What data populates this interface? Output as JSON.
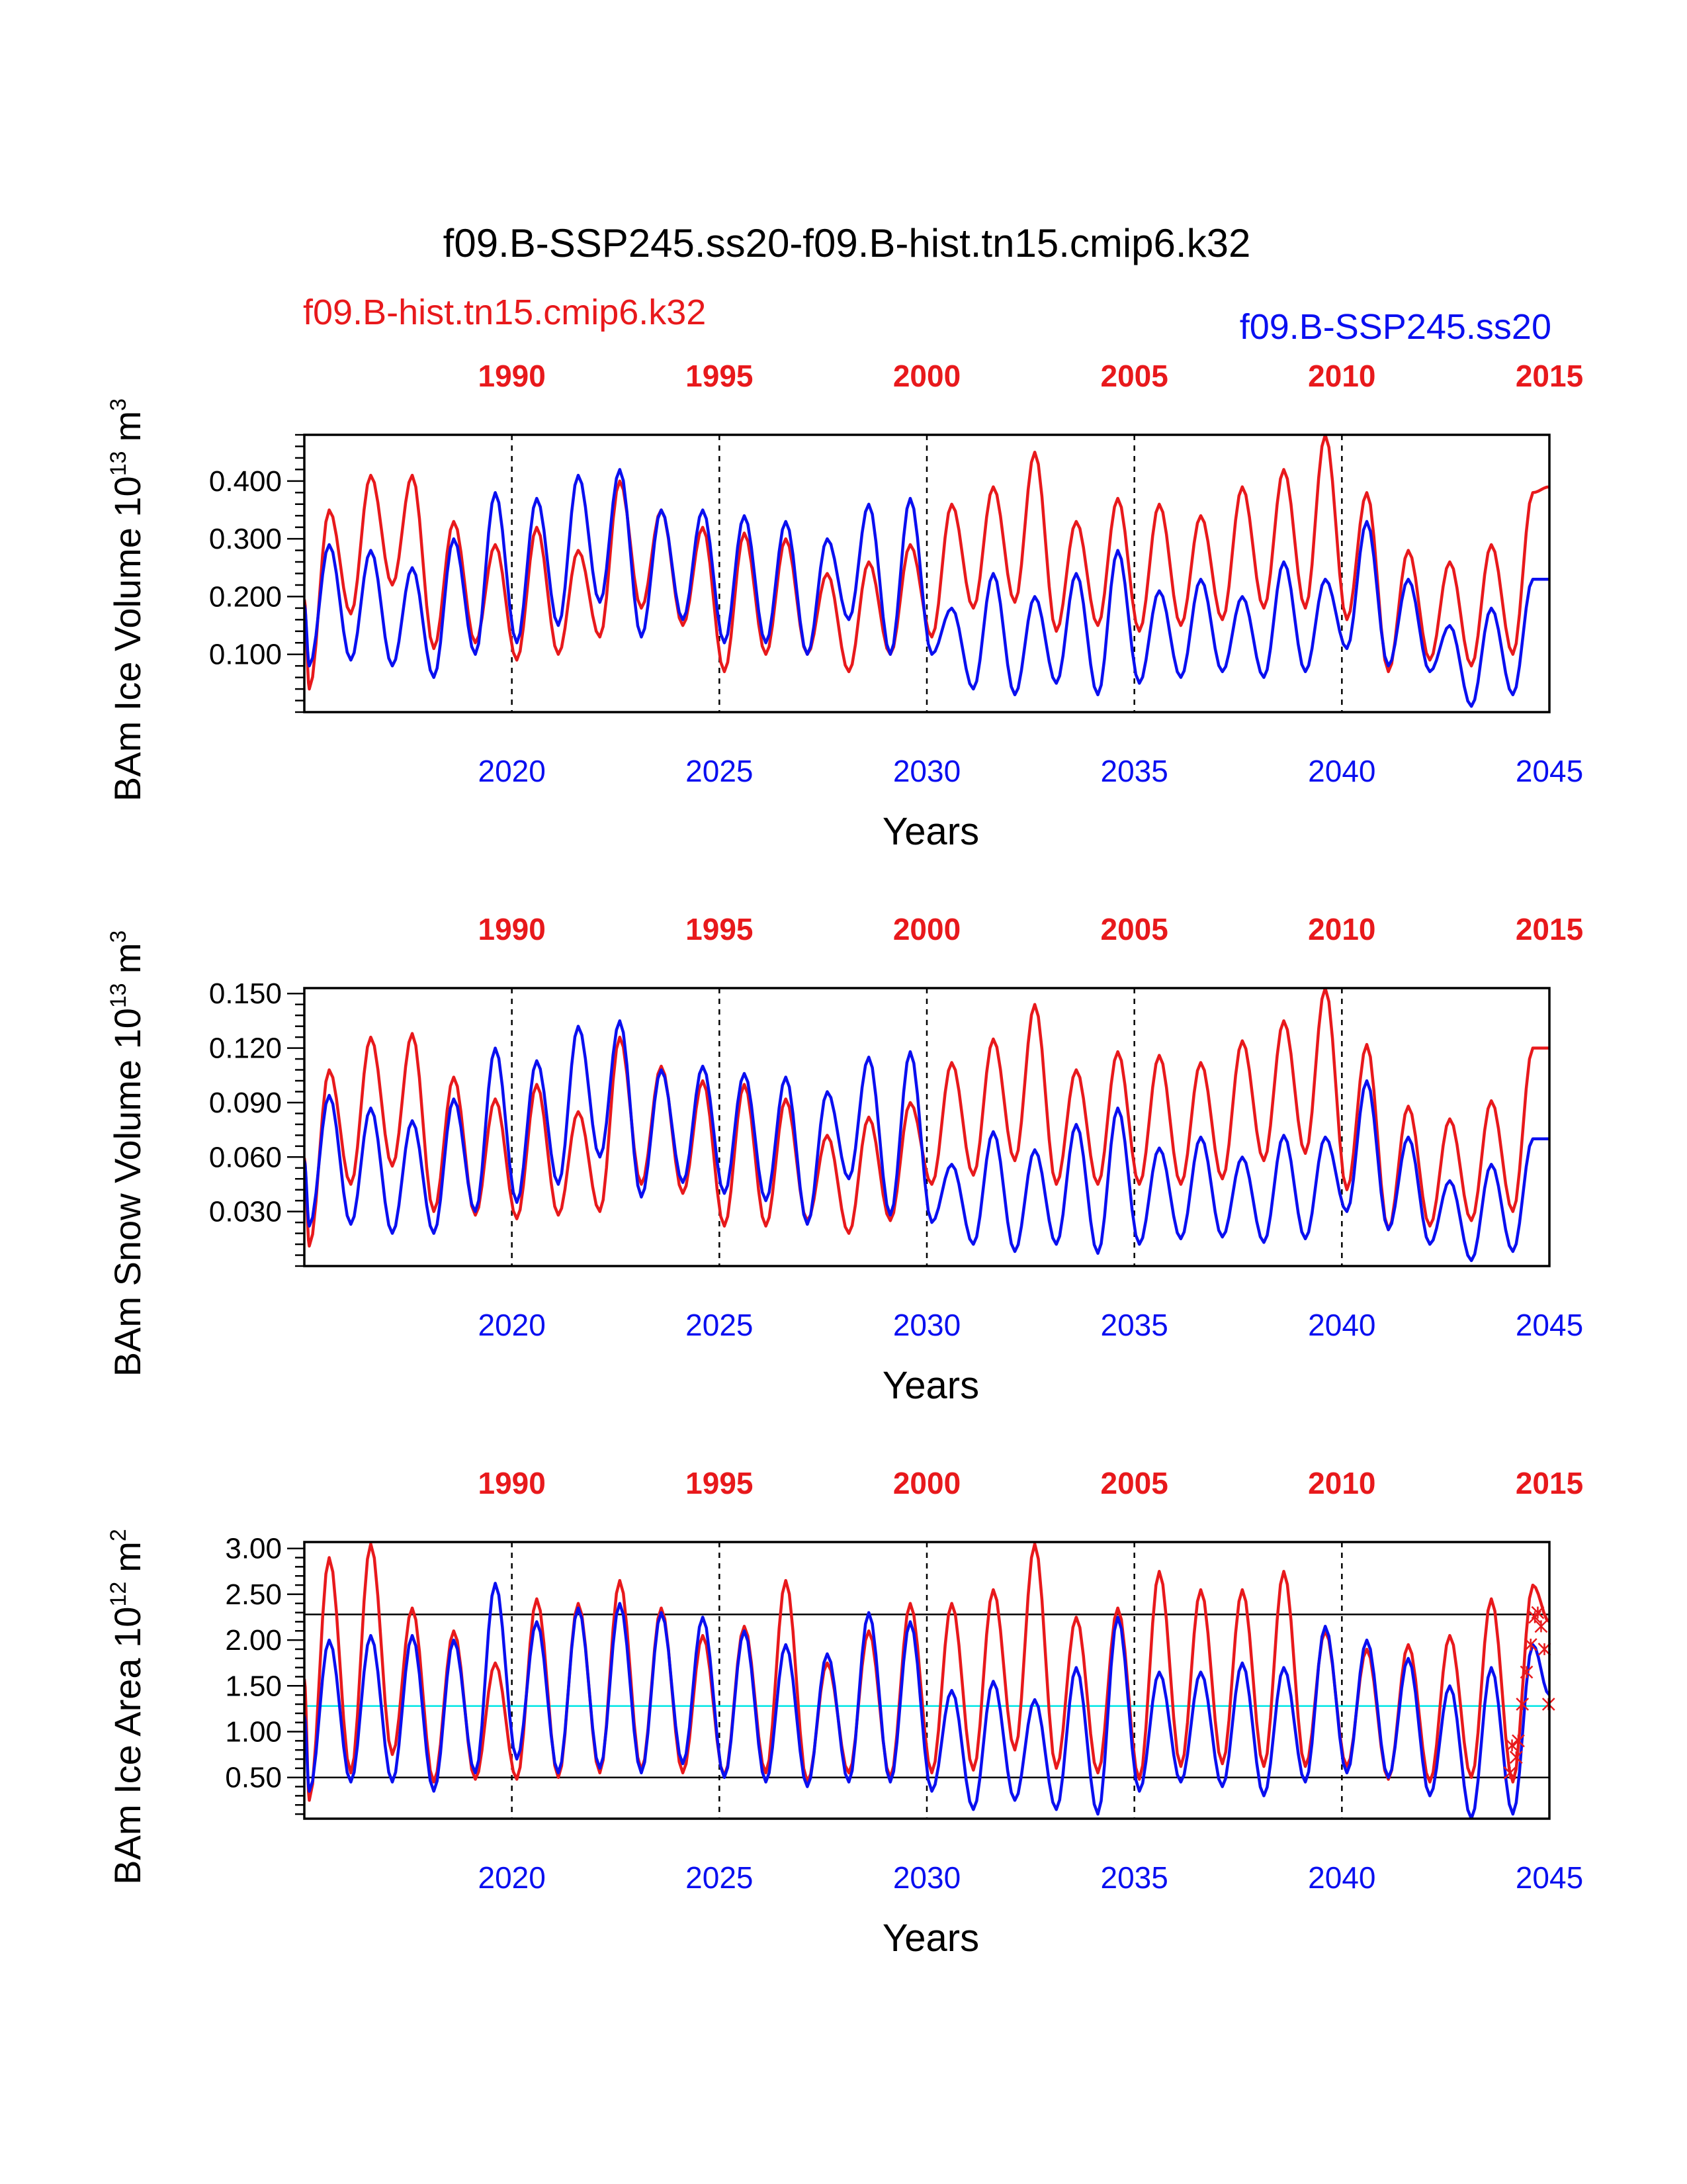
{
  "title": "f09.B-SSP245.ss20-f09.B-hist.tn15.cmip6.k32",
  "legend": {
    "red_label": "f09.B-hist.tn15.cmip6.k32",
    "blue_label": "f09.B-SSP245.ss20"
  },
  "colors": {
    "red": "#e8191c",
    "blue": "#0a0ff0",
    "cyan": "#00e5e5",
    "black": "#000000"
  },
  "chart_data": [
    {
      "type": "line",
      "id": "ice-volume",
      "ylabel_main": "BAm Ice Volume 10",
      "ylabel_exp": "13",
      "ylabel_unit": "m",
      "ylabel_unit_exp": "3",
      "xlabel": "Years",
      "top_axis_ticks": [
        "1990",
        "1995",
        "2000",
        "2005",
        "2010",
        "2015"
      ],
      "bottom_axis_ticks": [
        "2020",
        "2025",
        "2030",
        "2035",
        "2040",
        "2045"
      ],
      "x_top_range": [
        1985,
        2015
      ],
      "x_bottom_range": [
        2015,
        2045
      ],
      "ylim": [
        0.0,
        0.48
      ],
      "y_ticks": [
        "0.100",
        "0.200",
        "0.300",
        "0.400"
      ],
      "y_tick_values": [
        0.1,
        0.2,
        0.3,
        0.4
      ],
      "y_minor_step": 0.02,
      "reference_lines": [],
      "series": [
        {
          "name": "f09.B-hist.tn15.cmip6.k32",
          "color": "red",
          "min": [
            0.04,
            0.17,
            0.22,
            0.11,
            0.12,
            0.09,
            0.1,
            0.13,
            0.18,
            0.15,
            0.07,
            0.1,
            0.1,
            0.07,
            0.1,
            0.13,
            0.18,
            0.19,
            0.14,
            0.15,
            0.14,
            0.15,
            0.16,
            0.18,
            0.18,
            0.16,
            0.07,
            0.09,
            0.08,
            0.1
          ],
          "max": [
            0.35,
            0.41,
            0.41,
            0.33,
            0.29,
            0.32,
            0.28,
            0.4,
            0.35,
            0.32,
            0.31,
            0.3,
            0.24,
            0.26,
            0.29,
            0.36,
            0.39,
            0.45,
            0.33,
            0.37,
            0.36,
            0.34,
            0.39,
            0.42,
            0.48,
            0.38,
            0.28,
            0.26,
            0.29,
            0.38
          ],
          "end": 0.39
        },
        {
          "name": "f09.B-SSP245.ss20",
          "color": "blue",
          "min": [
            0.08,
            0.09,
            0.08,
            0.06,
            0.1,
            0.12,
            0.15,
            0.19,
            0.13,
            0.16,
            0.12,
            0.12,
            0.1,
            0.16,
            0.1,
            0.1,
            0.04,
            0.03,
            0.05,
            0.03,
            0.05,
            0.06,
            0.07,
            0.06,
            0.07,
            0.11,
            0.08,
            0.07,
            0.01,
            0.03
          ],
          "max": [
            0.29,
            0.28,
            0.25,
            0.3,
            0.38,
            0.37,
            0.41,
            0.42,
            0.35,
            0.35,
            0.34,
            0.33,
            0.3,
            0.36,
            0.37,
            0.18,
            0.24,
            0.2,
            0.24,
            0.28,
            0.21,
            0.23,
            0.2,
            0.26,
            0.23,
            0.33,
            0.23,
            0.15,
            0.18,
            0.23
          ],
          "end": 0.23
        }
      ]
    },
    {
      "type": "line",
      "id": "snow-volume",
      "ylabel_main": "BAm Snow Volume 10",
      "ylabel_exp": "13",
      "ylabel_unit": "m",
      "ylabel_unit_exp": "3",
      "xlabel": "Years",
      "top_axis_ticks": [
        "1990",
        "1995",
        "2000",
        "2005",
        "2010",
        "2015"
      ],
      "bottom_axis_ticks": [
        "2020",
        "2025",
        "2030",
        "2035",
        "2040",
        "2045"
      ],
      "x_top_range": [
        1985,
        2015
      ],
      "x_bottom_range": [
        2015,
        2045
      ],
      "ylim": [
        0.0,
        0.153
      ],
      "y_ticks": [
        "0.030",
        "0.060",
        "0.090",
        "0.120",
        "0.150"
      ],
      "y_tick_values": [
        0.03,
        0.06,
        0.09,
        0.12,
        0.15
      ],
      "y_minor_step": 0.006,
      "reference_lines": [],
      "series": [
        {
          "name": "f09.B-hist.tn15.cmip6.k32",
          "color": "red",
          "min": [
            0.011,
            0.045,
            0.055,
            0.03,
            0.028,
            0.026,
            0.028,
            0.03,
            0.045,
            0.04,
            0.022,
            0.022,
            0.025,
            0.018,
            0.025,
            0.045,
            0.05,
            0.058,
            0.045,
            0.045,
            0.045,
            0.045,
            0.048,
            0.058,
            0.062,
            0.042,
            0.02,
            0.022,
            0.025,
            0.03
          ],
          "max": [
            0.108,
            0.126,
            0.128,
            0.104,
            0.092,
            0.1,
            0.085,
            0.126,
            0.11,
            0.102,
            0.1,
            0.092,
            0.072,
            0.082,
            0.09,
            0.112,
            0.125,
            0.144,
            0.108,
            0.118,
            0.116,
            0.112,
            0.124,
            0.135,
            0.153,
            0.122,
            0.088,
            0.081,
            0.091,
            0.12
          ],
          "end": 0.12
        },
        {
          "name": "f09.B-SSP245.ss20",
          "color": "blue",
          "min": [
            0.022,
            0.023,
            0.018,
            0.018,
            0.03,
            0.035,
            0.045,
            0.06,
            0.038,
            0.046,
            0.04,
            0.036,
            0.023,
            0.048,
            0.028,
            0.024,
            0.012,
            0.008,
            0.012,
            0.007,
            0.012,
            0.015,
            0.016,
            0.013,
            0.015,
            0.03,
            0.02,
            0.012,
            0.003,
            0.008
          ],
          "max": [
            0.094,
            0.087,
            0.08,
            0.092,
            0.12,
            0.113,
            0.132,
            0.135,
            0.108,
            0.11,
            0.106,
            0.104,
            0.096,
            0.115,
            0.118,
            0.056,
            0.074,
            0.064,
            0.078,
            0.087,
            0.065,
            0.071,
            0.06,
            0.072,
            0.071,
            0.102,
            0.071,
            0.047,
            0.056,
            0.07
          ],
          "end": 0.07
        }
      ]
    },
    {
      "type": "line",
      "id": "ice-area",
      "ylabel_main": "BAm Ice Area 10",
      "ylabel_exp": "12",
      "ylabel_unit": "m",
      "ylabel_unit_exp": "2",
      "xlabel": "Years",
      "top_axis_ticks": [
        "1990",
        "1995",
        "2000",
        "2005",
        "2010",
        "2015"
      ],
      "bottom_axis_ticks": [
        "2020",
        "2025",
        "2030",
        "2035",
        "2040",
        "2045"
      ],
      "x_top_range": [
        1985,
        2015
      ],
      "x_bottom_range": [
        2015,
        2045
      ],
      "ylim": [
        0.05,
        3.07
      ],
      "y_ticks": [
        "0.50",
        "1.00",
        "1.50",
        "2.00",
        "2.50",
        "3.00"
      ],
      "y_tick_values": [
        0.5,
        1.0,
        1.5,
        2.0,
        2.5,
        3.0
      ],
      "y_minor_step": 0.1,
      "reference_lines": [
        {
          "value": 2.28,
          "color": "black"
        },
        {
          "value": 1.28,
          "color": "cyan"
        },
        {
          "value": 0.5,
          "color": "black"
        }
      ],
      "series": [
        {
          "name": "f09.B-hist.tn15.cmip6.k32",
          "color": "red",
          "min": [
            0.25,
            0.55,
            0.75,
            0.45,
            0.48,
            0.48,
            0.5,
            0.55,
            0.58,
            0.55,
            0.52,
            0.55,
            0.45,
            0.55,
            0.5,
            0.55,
            0.58,
            0.8,
            0.6,
            0.55,
            0.48,
            0.62,
            0.65,
            0.62,
            0.62,
            0.62,
            0.48,
            0.45,
            0.5,
            0.45
          ],
          "max": [
            2.9,
            3.05,
            2.35,
            2.1,
            1.75,
            2.45,
            2.4,
            2.65,
            2.35,
            2.05,
            2.15,
            2.65,
            1.75,
            2.1,
            2.4,
            2.4,
            2.55,
            3.05,
            2.25,
            2.35,
            2.75,
            2.55,
            2.55,
            2.75,
            2.1,
            1.9,
            1.95,
            2.05,
            2.45,
            2.6
          ],
          "end": 2.2
        },
        {
          "name": "f09.B-SSP245.ss20",
          "color": "blue",
          "min": [
            0.35,
            0.45,
            0.45,
            0.35,
            0.55,
            0.7,
            0.55,
            0.6,
            0.55,
            0.65,
            0.5,
            0.45,
            0.4,
            0.45,
            0.45,
            0.35,
            0.15,
            0.25,
            0.15,
            0.1,
            0.35,
            0.45,
            0.4,
            0.3,
            0.45,
            0.55,
            0.5,
            0.3,
            0.05,
            0.1
          ],
          "max": [
            2.0,
            2.05,
            2.05,
            2.0,
            2.62,
            2.2,
            2.35,
            2.4,
            2.3,
            2.25,
            2.1,
            1.95,
            1.85,
            2.3,
            2.2,
            1.45,
            1.55,
            1.35,
            1.7,
            2.25,
            1.65,
            1.65,
            1.75,
            1.7,
            2.15,
            2.0,
            1.8,
            1.5,
            1.7,
            1.95
          ],
          "end": 1.4
        }
      ],
      "markers": {
        "color": "red",
        "points": [
          [
            2044.05,
            0.55
          ],
          [
            2044.1,
            0.85
          ],
          [
            2044.2,
            0.72
          ],
          [
            2044.25,
            0.9
          ],
          [
            2044.35,
            1.3
          ],
          [
            2044.45,
            1.65
          ],
          [
            2044.55,
            1.95
          ],
          [
            2044.65,
            2.25
          ],
          [
            2044.72,
            2.3
          ],
          [
            2044.8,
            2.15
          ],
          [
            2044.88,
            1.9
          ],
          [
            2044.98,
            1.3
          ]
        ]
      }
    }
  ]
}
